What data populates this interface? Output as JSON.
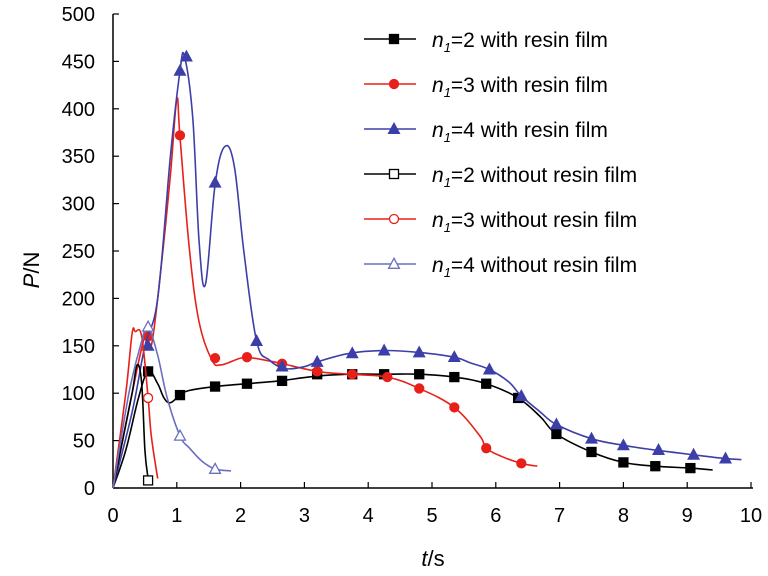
{
  "chart_data": {
    "type": "line",
    "title": "",
    "xlabel": {
      "var": "t",
      "unit": "/s"
    },
    "ylabel": {
      "var": "P",
      "unit": "/N"
    },
    "xlim": [
      0,
      10
    ],
    "ylim": [
      0,
      500
    ],
    "xticks": [
      "0",
      "1",
      "2",
      "3",
      "4",
      "5",
      "6",
      "7",
      "8",
      "9",
      "10"
    ],
    "yticks": [
      "0",
      "50",
      "100",
      "150",
      "200",
      "250",
      "300",
      "350",
      "400",
      "450",
      "500"
    ],
    "grid": false,
    "legend_position": "top-right",
    "series": [
      {
        "legend": {
          "var": "n",
          "sub": "1",
          "text": "=2 with resin film"
        },
        "color": "#000000",
        "marker": "square-filled",
        "points": [
          [
            0,
            0
          ],
          [
            0.2,
            40
          ],
          [
            0.4,
            95
          ],
          [
            0.55,
            123
          ],
          [
            0.7,
            110
          ],
          [
            0.8,
            95
          ],
          [
            0.9,
            90
          ],
          [
            1.05,
            98
          ],
          [
            1.2,
            103
          ],
          [
            1.6,
            107
          ],
          [
            2.1,
            110
          ],
          [
            2.6,
            113
          ],
          [
            3.2,
            118
          ],
          [
            3.7,
            120
          ],
          [
            4.3,
            120
          ],
          [
            4.8,
            120
          ],
          [
            5.35,
            117
          ],
          [
            5.85,
            110
          ],
          [
            6.35,
            95
          ],
          [
            6.7,
            75
          ],
          [
            6.95,
            57
          ],
          [
            7.5,
            38
          ],
          [
            8.0,
            27
          ],
          [
            8.5,
            23
          ],
          [
            9.05,
            21
          ],
          [
            9.4,
            19
          ]
        ],
        "markers": [
          [
            0.55,
            123
          ],
          [
            1.05,
            98
          ],
          [
            1.6,
            107
          ],
          [
            2.1,
            110
          ],
          [
            2.65,
            113
          ],
          [
            3.2,
            120
          ],
          [
            3.75,
            120
          ],
          [
            4.25,
            120
          ],
          [
            4.8,
            120
          ],
          [
            5.35,
            117
          ],
          [
            5.85,
            110
          ],
          [
            6.35,
            95
          ],
          [
            6.95,
            57
          ],
          [
            7.5,
            38
          ],
          [
            8.0,
            27
          ],
          [
            8.5,
            23
          ],
          [
            9.05,
            21
          ]
        ]
      },
      {
        "legend": {
          "var": "n",
          "sub": "1",
          "text": "=3 with resin film"
        },
        "color": "#e8201a",
        "marker": "circle-filled",
        "points": [
          [
            0,
            0
          ],
          [
            0.3,
            100
          ],
          [
            0.5,
            160
          ],
          [
            0.6,
            150
          ],
          [
            0.75,
            230
          ],
          [
            0.9,
            330
          ],
          [
            1.0,
            410
          ],
          [
            1.05,
            370
          ],
          [
            1.2,
            250
          ],
          [
            1.35,
            175
          ],
          [
            1.55,
            135
          ],
          [
            1.7,
            130
          ],
          [
            2.0,
            137
          ],
          [
            2.2,
            137
          ],
          [
            2.6,
            132
          ],
          [
            3.2,
            123
          ],
          [
            3.7,
            120
          ],
          [
            4.3,
            117
          ],
          [
            4.8,
            105
          ],
          [
            5.35,
            85
          ],
          [
            5.75,
            55
          ],
          [
            5.85,
            42
          ],
          [
            6.1,
            33
          ],
          [
            6.4,
            26
          ],
          [
            6.65,
            23
          ]
        ],
        "markers": [
          [
            0.55,
            160
          ],
          [
            1.05,
            372
          ],
          [
            1.6,
            137
          ],
          [
            2.1,
            138
          ],
          [
            2.65,
            131
          ],
          [
            3.2,
            123
          ],
          [
            3.75,
            120
          ],
          [
            4.3,
            117
          ],
          [
            4.8,
            105
          ],
          [
            5.35,
            85
          ],
          [
            5.85,
            42
          ],
          [
            6.4,
            26
          ]
        ]
      },
      {
        "legend": {
          "var": "n",
          "sub": "1",
          "text": "=4 with resin film"
        },
        "color": "#3d3fa8",
        "marker": "triangle-filled",
        "points": [
          [
            0,
            0
          ],
          [
            0.3,
            80
          ],
          [
            0.5,
            150
          ],
          [
            0.7,
            200
          ],
          [
            0.9,
            350
          ],
          [
            1.05,
            440
          ],
          [
            1.12,
            455
          ],
          [
            1.25,
            390
          ],
          [
            1.35,
            260
          ],
          [
            1.45,
            215
          ],
          [
            1.6,
            320
          ],
          [
            1.75,
            360
          ],
          [
            1.9,
            340
          ],
          [
            2.05,
            250
          ],
          [
            2.25,
            155
          ],
          [
            2.45,
            135
          ],
          [
            2.7,
            126
          ],
          [
            3.0,
            128
          ],
          [
            3.2,
            133
          ],
          [
            3.7,
            142
          ],
          [
            4.25,
            145
          ],
          [
            4.8,
            143
          ],
          [
            5.35,
            138
          ],
          [
            5.6,
            132
          ],
          [
            5.9,
            125
          ],
          [
            6.2,
            112
          ],
          [
            6.4,
            97
          ],
          [
            6.7,
            80
          ],
          [
            6.95,
            67
          ],
          [
            7.5,
            52
          ],
          [
            8.0,
            45
          ],
          [
            8.5,
            40
          ],
          [
            9.1,
            35
          ],
          [
            9.6,
            31
          ],
          [
            9.85,
            30
          ]
        ],
        "markers": [
          [
            0.55,
            150
          ],
          [
            1.05,
            440
          ],
          [
            1.15,
            455
          ],
          [
            1.6,
            322
          ],
          [
            2.25,
            155
          ],
          [
            2.65,
            128
          ],
          [
            3.2,
            133
          ],
          [
            3.75,
            142
          ],
          [
            4.25,
            145
          ],
          [
            4.8,
            143
          ],
          [
            5.35,
            138
          ],
          [
            5.9,
            125
          ],
          [
            6.4,
            97
          ],
          [
            6.95,
            67
          ],
          [
            7.5,
            52
          ],
          [
            8.0,
            45
          ],
          [
            8.55,
            40
          ],
          [
            9.1,
            35
          ],
          [
            9.6,
            31
          ]
        ]
      },
      {
        "legend": {
          "var": "n",
          "sub": "1",
          "text": "=2 without resin film"
        },
        "color": "#000000",
        "marker": "square-open",
        "points": [
          [
            0,
            0
          ],
          [
            0.15,
            50
          ],
          [
            0.3,
            100
          ],
          [
            0.38,
            130
          ],
          [
            0.45,
            110
          ],
          [
            0.5,
            40
          ],
          [
            0.55,
            10
          ]
        ],
        "markers": [
          [
            0.55,
            8
          ]
        ]
      },
      {
        "legend": {
          "var": "n",
          "sub": "1",
          "text": "=3 without resin film"
        },
        "color": "#e8201a",
        "marker": "circle-open",
        "points": [
          [
            0,
            0
          ],
          [
            0.2,
            100
          ],
          [
            0.3,
            163
          ],
          [
            0.35,
            165
          ],
          [
            0.45,
            160
          ],
          [
            0.55,
            95
          ],
          [
            0.6,
            55
          ],
          [
            0.7,
            10
          ]
        ],
        "markers": [
          [
            0.55,
            95
          ]
        ]
      },
      {
        "legend": {
          "var": "n",
          "sub": "1",
          "text": "=4 without resin film"
        },
        "color": "#6a6fc0",
        "marker": "triangle-open",
        "points": [
          [
            0,
            0
          ],
          [
            0.25,
            100
          ],
          [
            0.45,
            155
          ],
          [
            0.55,
            170
          ],
          [
            0.7,
            140
          ],
          [
            0.85,
            95
          ],
          [
            1.05,
            55
          ],
          [
            1.2,
            42
          ],
          [
            1.4,
            28
          ],
          [
            1.6,
            20
          ],
          [
            1.85,
            18
          ]
        ],
        "markers": [
          [
            0.55,
            170
          ],
          [
            1.05,
            55
          ],
          [
            1.6,
            20
          ]
        ]
      }
    ]
  }
}
